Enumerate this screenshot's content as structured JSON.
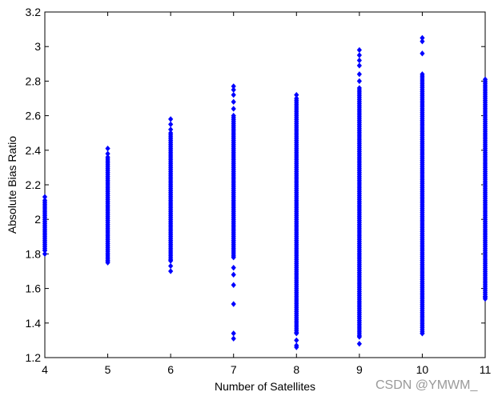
{
  "chart_data": {
    "type": "scatter",
    "title": "",
    "xlabel": "Number of Satellites",
    "ylabel": "Absolute Bias Ratio",
    "xlim": [
      4,
      11
    ],
    "ylim": [
      1.2,
      3.2
    ],
    "xticks": [
      4,
      5,
      6,
      7,
      8,
      9,
      10,
      11
    ],
    "yticks": [
      1.2,
      1.4,
      1.6,
      1.8,
      2,
      2.2,
      2.4,
      2.6,
      2.8,
      3,
      3.2
    ],
    "xtick_labels": [
      "4",
      "5",
      "6",
      "7",
      "8",
      "9",
      "10",
      "11"
    ],
    "ytick_labels": [
      "1.2",
      "1.4",
      "1.6",
      "1.8",
      "2",
      "2.2",
      "2.4",
      "2.6",
      "2.8",
      "3",
      "3.2"
    ],
    "grid": false,
    "marker": "diamond",
    "color": "#0000ff",
    "series": [
      {
        "groups": [
          {
            "x": 4,
            "dense_range": [
              1.82,
              2.11
            ],
            "outliers": [
              1.8,
              2.13
            ]
          },
          {
            "x": 5,
            "dense_range": [
              1.76,
              2.36
            ],
            "outliers": [
              1.75,
              2.38,
              2.41
            ]
          },
          {
            "x": 6,
            "dense_range": [
              1.76,
              2.5
            ],
            "outliers": [
              1.7,
              1.73,
              2.52,
              2.55,
              2.58
            ]
          },
          {
            "x": 7,
            "dense_range": [
              1.78,
              2.6
            ],
            "outliers": [
              1.31,
              1.34,
              1.51,
              1.62,
              1.68,
              1.72,
              2.64,
              2.68,
              2.72,
              2.75,
              2.77
            ]
          },
          {
            "x": 8,
            "dense_range": [
              1.34,
              2.7
            ],
            "outliers": [
              1.26,
              1.27,
              1.3,
              2.72
            ]
          },
          {
            "x": 9,
            "dense_range": [
              1.32,
              2.76
            ],
            "outliers": [
              1.28,
              2.8,
              2.84,
              2.89,
              2.92,
              2.95,
              2.98
            ]
          },
          {
            "x": 10,
            "dense_range": [
              1.34,
              2.84
            ],
            "outliers": [
              2.96,
              3.03,
              3.05
            ]
          },
          {
            "x": 11,
            "dense_range": [
              1.55,
              2.81
            ],
            "outliers": [
              1.54
            ]
          }
        ]
      }
    ]
  },
  "watermark": "CSDN @YMWM_"
}
